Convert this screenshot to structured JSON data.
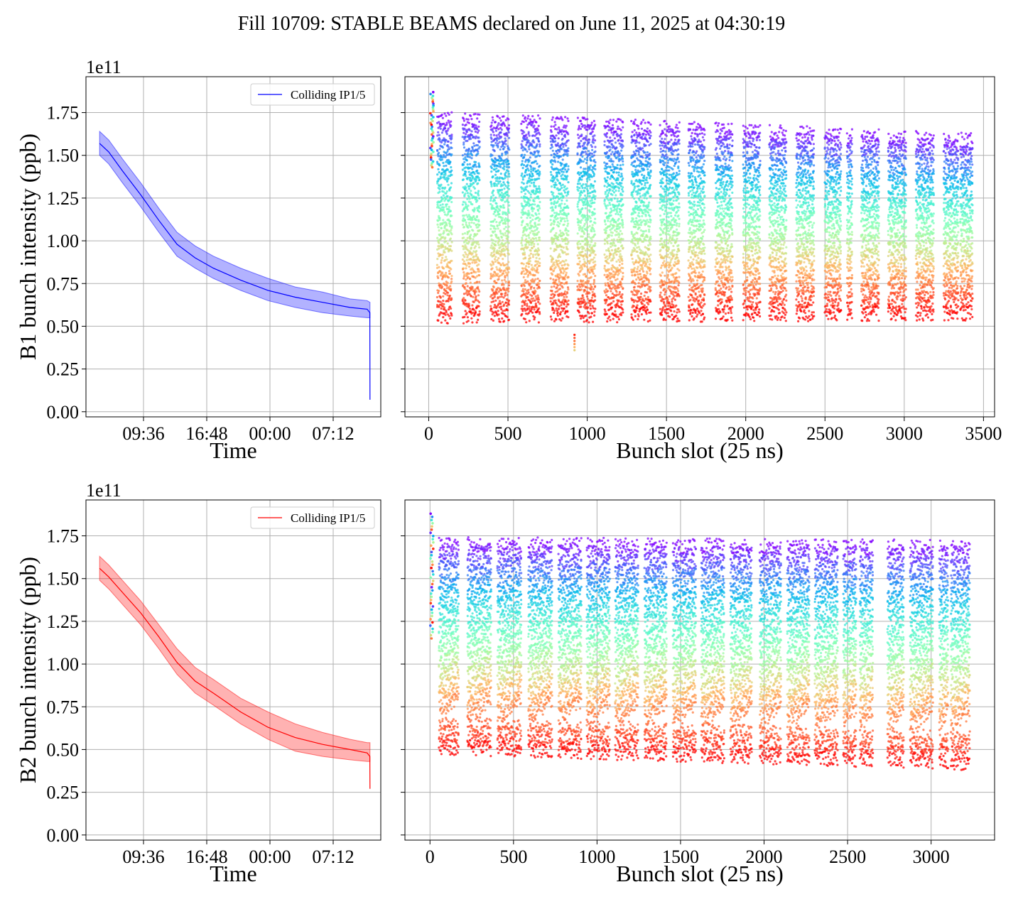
{
  "title": "Fill 10709: STABLE BEAMS declared on June 11, 2025 at 04:30:19",
  "colors": {
    "beam1": "#0000ff",
    "beam2": "#ff0000",
    "grid": "#b0b0b0",
    "colormap": "rainbow"
  },
  "chart_data": [
    {
      "id": "b1-time",
      "type": "line",
      "ylabel": "B1 bunch intensity (ppb)",
      "xlabel": "Time",
      "y_offset_label": "1e11",
      "x_tick_labels": [
        "09:36",
        "16:48",
        "00:00",
        "07:12"
      ],
      "xlim": [
        0,
        32.4
      ],
      "ylim": [
        -0.03,
        1.96
      ],
      "y_ticks": [
        0.0,
        0.25,
        0.5,
        0.75,
        1.0,
        1.25,
        1.5,
        1.75
      ],
      "legend": {
        "label": "Colliding IP1/5",
        "placement": "upper right"
      },
      "grid": true,
      "series": [
        {
          "name": "Colliding IP1/5",
          "color": "#0000ff",
          "x": [
            1.5,
            2.5,
            4.0,
            6.0,
            8.0,
            10.0,
            12.0,
            14.0,
            17.0,
            20.0,
            23.0,
            26.0,
            29.0,
            30.9,
            31.2,
            31.21
          ],
          "mean": [
            1.57,
            1.52,
            1.41,
            1.27,
            1.12,
            0.98,
            0.9,
            0.84,
            0.77,
            0.71,
            0.67,
            0.64,
            0.61,
            0.6,
            0.58,
            0.07
          ],
          "upper": [
            1.64,
            1.59,
            1.48,
            1.34,
            1.19,
            1.05,
            0.97,
            0.91,
            0.84,
            0.78,
            0.73,
            0.7,
            0.66,
            0.65,
            0.64,
            0.64
          ],
          "lower": [
            1.5,
            1.45,
            1.34,
            1.2,
            1.05,
            0.91,
            0.84,
            0.78,
            0.71,
            0.65,
            0.61,
            0.58,
            0.56,
            0.55,
            0.55,
            0.55
          ]
        }
      ]
    },
    {
      "id": "b1-slot",
      "type": "scatter",
      "xlabel": "Bunch slot (25 ns)",
      "xlim": [
        -150,
        3570
      ],
      "ylim": [
        -0.03,
        1.96
      ],
      "x_ticks": [
        0,
        500,
        1000,
        1500,
        2000,
        2500,
        3000,
        3500
      ],
      "grid": true,
      "colormap": "rainbow (early = violet, late = red)",
      "y_range_top": [
        1.72,
        1.58
      ],
      "y_range_bottom": [
        0.56,
        0.58
      ],
      "trains": [
        [
          55,
          148
        ],
        [
          215,
          320
        ],
        [
          392,
          508
        ],
        [
          585,
          700
        ],
        [
          770,
          880
        ],
        [
          940,
          1050
        ],
        [
          1110,
          1225
        ],
        [
          1280,
          1400
        ],
        [
          1460,
          1580
        ],
        [
          1640,
          1740
        ],
        [
          1810,
          1915
        ],
        [
          1985,
          2090
        ],
        [
          2150,
          2255
        ],
        [
          2320,
          2430
        ],
        [
          2500,
          2600
        ],
        [
          2640,
          2670
        ],
        [
          2730,
          2840
        ],
        [
          2900,
          3010
        ],
        [
          3075,
          3185
        ],
        [
          3250,
          3340
        ],
        [
          3355,
          3430
        ]
      ],
      "pilot": {
        "x": [
          10,
          30
        ],
        "y": [
          1.43,
          1.87
        ]
      },
      "outlier": {
        "x": 920,
        "y": [
          0.36,
          0.45
        ]
      }
    },
    {
      "id": "b2-time",
      "type": "line",
      "ylabel": "B2 bunch intensity (ppb)",
      "xlabel": "Time",
      "y_offset_label": "1e11",
      "x_tick_labels": [
        "09:36",
        "16:48",
        "00:00",
        "07:12"
      ],
      "xlim": [
        0,
        32.4
      ],
      "ylim": [
        -0.03,
        1.96
      ],
      "y_ticks": [
        0.0,
        0.25,
        0.5,
        0.75,
        1.0,
        1.25,
        1.5,
        1.75
      ],
      "legend": {
        "label": "Colliding IP1/5",
        "placement": "upper right"
      },
      "grid": true,
      "series": [
        {
          "name": "Colliding IP1/5",
          "color": "#ff0000",
          "x": [
            1.5,
            2.5,
            4.0,
            6.0,
            8.0,
            10.0,
            12.0,
            14.0,
            17.0,
            20.0,
            23.0,
            26.0,
            29.0,
            30.9,
            31.2,
            31.21
          ],
          "mean": [
            1.56,
            1.51,
            1.42,
            1.3,
            1.16,
            1.01,
            0.9,
            0.83,
            0.72,
            0.63,
            0.57,
            0.53,
            0.5,
            0.48,
            0.46,
            0.27
          ],
          "upper": [
            1.63,
            1.58,
            1.49,
            1.37,
            1.23,
            1.09,
            0.98,
            0.91,
            0.8,
            0.72,
            0.65,
            0.6,
            0.56,
            0.54,
            0.54,
            0.54
          ],
          "lower": [
            1.49,
            1.44,
            1.35,
            1.23,
            1.09,
            0.94,
            0.83,
            0.76,
            0.65,
            0.56,
            0.49,
            0.46,
            0.44,
            0.43,
            0.43,
            0.43
          ]
        }
      ]
    },
    {
      "id": "b2-slot",
      "type": "scatter",
      "xlabel": "Bunch slot (25 ns)",
      "xlim": [
        -150,
        3380
      ],
      "ylim": [
        -0.03,
        1.96
      ],
      "x_ticks": [
        0,
        500,
        1000,
        1500,
        2000,
        2500,
        3000
      ],
      "grid": true,
      "colormap": "rainbow (early = violet, late = red)",
      "y_range_top": [
        1.7,
        1.68
      ],
      "y_range_bottom": [
        0.52,
        0.42
      ],
      "trains": [
        [
          55,
          170
        ],
        [
          225,
          365
        ],
        [
          405,
          545
        ],
        [
          590,
          730
        ],
        [
          770,
          905
        ],
        [
          940,
          1075
        ],
        [
          1110,
          1245
        ],
        [
          1285,
          1415
        ],
        [
          1455,
          1590
        ],
        [
          1625,
          1760
        ],
        [
          1800,
          1925
        ],
        [
          1975,
          2100
        ],
        [
          2140,
          2270
        ],
        [
          2305,
          2440
        ],
        [
          2475,
          2550
        ],
        [
          2575,
          2650
        ],
        [
          2740,
          2835
        ],
        [
          2875,
          3010
        ],
        [
          3050,
          3100
        ],
        [
          3120,
          3230
        ]
      ],
      "pilot": {
        "x": [
          0,
          20
        ],
        "y": [
          1.15,
          1.88
        ]
      }
    }
  ]
}
